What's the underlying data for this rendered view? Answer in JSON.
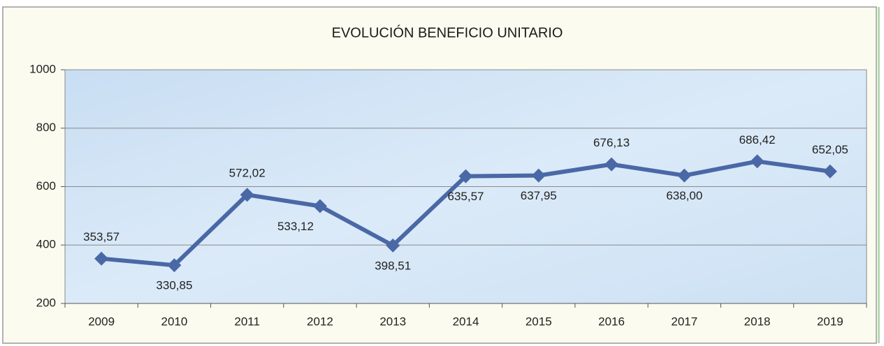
{
  "chart_data": {
    "type": "line",
    "title": "EVOLUCIÓN BENEFICIO UNITARIO",
    "categories": [
      "2009",
      "2010",
      "2011",
      "2012",
      "2013",
      "2014",
      "2015",
      "2016",
      "2017",
      "2018",
      "2019"
    ],
    "series": [
      {
        "name": "Beneficio unitario",
        "color": "#4a68a6",
        "values": [
          353.57,
          330.85,
          572.02,
          533.12,
          398.51,
          635.57,
          637.95,
          676.13,
          638.0,
          686.42,
          652.05
        ],
        "value_labels": [
          "353,57",
          "330,85",
          "572,02",
          "533,12",
          "398,51",
          "635,57",
          "637,95",
          "676,13",
          "638,00",
          "686,42",
          "652,05"
        ]
      }
    ],
    "ylim": [
      200,
      1000
    ],
    "yticks": [
      200,
      400,
      600,
      800,
      1000
    ],
    "grid": true
  }
}
